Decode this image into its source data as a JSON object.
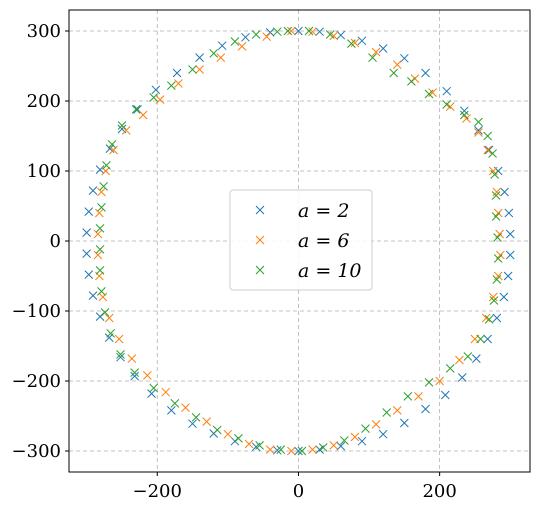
{
  "chart_data": {
    "type": "scatter",
    "marker": "x",
    "grid": true,
    "grid_style": "dashed",
    "legend_position": "center",
    "xlim": [
      -325,
      328
    ],
    "ylim": [
      -330,
      330
    ],
    "x_ticks": [
      -200,
      0,
      200
    ],
    "y_ticks": [
      300,
      200,
      100,
      0,
      -100,
      -200,
      -300
    ],
    "x_tick_labels": [
      "−200",
      "0",
      "200"
    ],
    "y_tick_labels": [
      "300",
      "200",
      "100",
      "0",
      "−100",
      "−200",
      "−300"
    ],
    "series": [
      {
        "name": "a = 2",
        "color": "#1f77b4",
        "points": [
          [
            0,
            300
          ],
          [
            30,
            299
          ],
          [
            60,
            294
          ],
          [
            90,
            286
          ],
          [
            120,
            275
          ],
          [
            150,
            261
          ],
          [
            180,
            240
          ],
          [
            210,
            214
          ],
          [
            235,
            186
          ],
          [
            255,
            158
          ],
          [
            270,
            130
          ],
          [
            283,
            100
          ],
          [
            292,
            70
          ],
          [
            298,
            40
          ],
          [
            300,
            10
          ],
          [
            300,
            -20
          ],
          [
            297,
            -50
          ],
          [
            291,
            -80
          ],
          [
            281,
            -110
          ],
          [
            268,
            -140
          ],
          [
            252,
            -168
          ],
          [
            232,
            -195
          ],
          [
            208,
            -220
          ],
          [
            180,
            -240
          ],
          [
            150,
            -260
          ],
          [
            120,
            -276
          ],
          [
            90,
            -286
          ],
          [
            60,
            -293
          ],
          [
            30,
            -298
          ],
          [
            0,
            -300
          ],
          [
            -30,
            -299
          ],
          [
            -60,
            -294
          ],
          [
            -90,
            -286
          ],
          [
            -120,
            -275
          ],
          [
            -150,
            -261
          ],
          [
            -180,
            -242
          ],
          [
            -208,
            -218
          ],
          [
            -232,
            -193
          ],
          [
            -252,
            -166
          ],
          [
            -268,
            -138
          ],
          [
            -281,
            -108
          ],
          [
            -291,
            -78
          ],
          [
            -297,
            -48
          ],
          [
            -300,
            -18
          ],
          [
            -300,
            12
          ],
          [
            -297,
            42
          ],
          [
            -291,
            72
          ],
          [
            -281,
            102
          ],
          [
            -267,
            132
          ],
          [
            -250,
            160
          ],
          [
            -228,
            188
          ],
          [
            -202,
            216
          ],
          [
            -172,
            240
          ],
          [
            -140,
            262
          ],
          [
            -108,
            279
          ],
          [
            -75,
            291
          ],
          [
            -40,
            298
          ]
        ]
      },
      {
        "name": "a = 6",
        "color": "#ff7f0e",
        "points": [
          [
            -10,
            300
          ],
          [
            20,
            299
          ],
          [
            50,
            293
          ],
          [
            80,
            283
          ],
          [
            110,
            270
          ],
          [
            140,
            252
          ],
          [
            165,
            232
          ],
          [
            190,
            212
          ],
          [
            215,
            192
          ],
          [
            238,
            175
          ],
          [
            255,
            155
          ],
          [
            268,
            130
          ],
          [
            276,
            100
          ],
          [
            281,
            70
          ],
          [
            283,
            40
          ],
          [
            285,
            10
          ],
          [
            286,
            -20
          ],
          [
            283,
            -50
          ],
          [
            276,
            -80
          ],
          [
            266,
            -110
          ],
          [
            250,
            -140
          ],
          [
            228,
            -170
          ],
          [
            200,
            -200
          ],
          [
            170,
            -222
          ],
          [
            140,
            -242
          ],
          [
            110,
            -262
          ],
          [
            80,
            -280
          ],
          [
            50,
            -292
          ],
          [
            20,
            -298
          ],
          [
            -10,
            -300
          ],
          [
            -40,
            -298
          ],
          [
            -70,
            -290
          ],
          [
            -100,
            -276
          ],
          [
            -130,
            -258
          ],
          [
            -160,
            -238
          ],
          [
            -188,
            -216
          ],
          [
            -214,
            -192
          ],
          [
            -236,
            -168
          ],
          [
            -254,
            -140
          ],
          [
            -268,
            -110
          ],
          [
            -277,
            -80
          ],
          [
            -282,
            -50
          ],
          [
            -284,
            -20
          ],
          [
            -284,
            10
          ],
          [
            -282,
            40
          ],
          [
            -279,
            70
          ],
          [
            -273,
            100
          ],
          [
            -262,
            130
          ],
          [
            -244,
            158
          ],
          [
            -220,
            180
          ],
          [
            -196,
            202
          ],
          [
            -170,
            225
          ],
          [
            -140,
            245
          ],
          [
            -110,
            262
          ],
          [
            -80,
            278
          ],
          [
            -45,
            292
          ]
        ]
      },
      {
        "name": "a = 10",
        "color": "#2ca02c",
        "points": [
          [
            -15,
            300
          ],
          [
            15,
            300
          ],
          [
            45,
            295
          ],
          [
            75,
            282
          ],
          [
            105,
            262
          ],
          [
            135,
            240
          ],
          [
            160,
            228
          ],
          [
            185,
            210
          ],
          [
            210,
            195
          ],
          [
            235,
            180
          ],
          [
            255,
            170
          ],
          [
            268,
            150
          ],
          [
            275,
            125
          ],
          [
            278,
            95
          ],
          [
            280,
            65
          ],
          [
            280,
            35
          ],
          [
            282,
            5
          ],
          [
            283,
            -25
          ],
          [
            281,
            -55
          ],
          [
            277,
            -85
          ],
          [
            270,
            -112
          ],
          [
            258,
            -140
          ],
          [
            240,
            -165
          ],
          [
            215,
            -182
          ],
          [
            185,
            -202
          ],
          [
            155,
            -222
          ],
          [
            125,
            -245
          ],
          [
            95,
            -268
          ],
          [
            65,
            -285
          ],
          [
            35,
            -295
          ],
          [
            5,
            -300
          ],
          [
            -25,
            -298
          ],
          [
            -55,
            -292
          ],
          [
            -85,
            -282
          ],
          [
            -115,
            -270
          ],
          [
            -145,
            -252
          ],
          [
            -175,
            -232
          ],
          [
            -205,
            -210
          ],
          [
            -232,
            -188
          ],
          [
            -252,
            -162
          ],
          [
            -266,
            -132
          ],
          [
            -274,
            -102
          ],
          [
            -279,
            -72
          ],
          [
            -281,
            -42
          ],
          [
            -281,
            -12
          ],
          [
            -281,
            18
          ],
          [
            -279,
            48
          ],
          [
            -276,
            78
          ],
          [
            -272,
            108
          ],
          [
            -264,
            138
          ],
          [
            -250,
            165
          ],
          [
            -230,
            188
          ],
          [
            -205,
            205
          ],
          [
            -180,
            222
          ],
          [
            -150,
            245
          ],
          [
            -120,
            268
          ],
          [
            -90,
            285
          ],
          [
            -60,
            295
          ],
          [
            -30,
            299
          ]
        ]
      }
    ]
  }
}
